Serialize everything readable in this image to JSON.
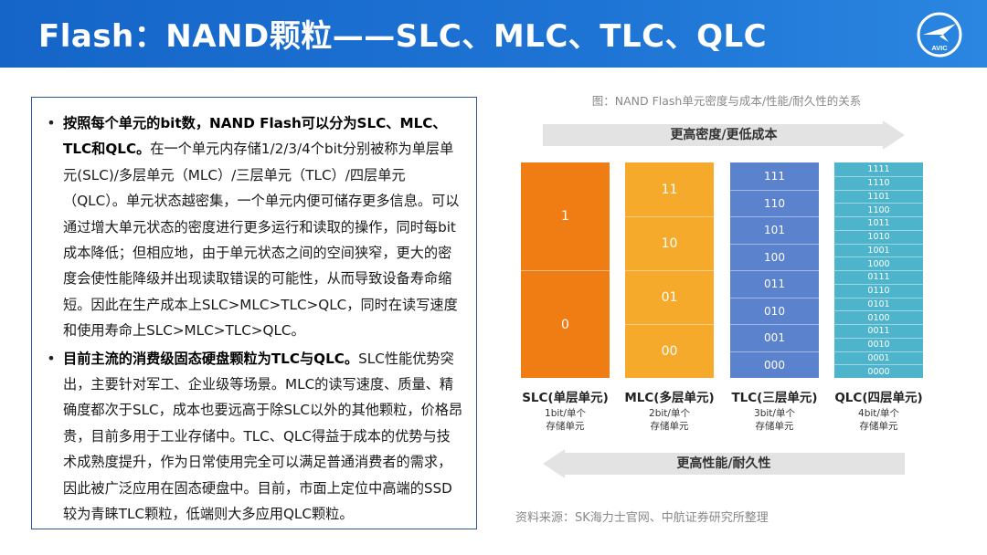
{
  "header": {
    "title": "Flash：NAND颗粒——SLC、MLC、TLC、QLC",
    "logo_text": "AVIC"
  },
  "left_panel": {
    "bullets": [
      {
        "bold": "按照每个单元的bit数，NAND Flash可以分为SLC、MLC、TLC和QLC。",
        "text": "在一个单元内存储1/2/3/4个bit分别被称为单层单元(SLC)/多层单元（MLC）/三层单元（TLC）/四层单元（QLC）。单元状态越密集，一个单元内便可储存更多信息。可以通过增大单元状态的密度进行更多运行和读取的操作，同时每bit成本降低；但相应地，由于单元状态之间的空间狭窄，更大的密度会使性能降级并出现读取错误的可能性，从而导致设备寿命缩短。因此在生产成本上SLC>MLC>TLC>QLC，同时在读写速度和使用寿命上SLC>MLC>TLC>QLC。"
      },
      {
        "bold": "目前主流的消费级固态硬盘颗粒为TLC与QLC。",
        "text": "SLC性能优势突出，主要针对军工、企业级等场景。MLC的读写速度、质量、精确度都次于SLC，成本也要远高于除SLC以外的其他颗粒，价格昂贵，目前多用于工业存储中。TLC、QLC得益于成本的优势与技术成熟度提升，作为日常使用完全可以满足普通消费者的需求，因此被广泛应用在固态硬盘中。目前，市面上定位中高端的SSD较为青睐TLC颗粒，低端则大多应用QLC颗粒。"
      }
    ]
  },
  "figure": {
    "caption": "图：NAND Flash单元密度与成本/性能/耐久性的关系",
    "top_arrow": "更高密度/更低成本",
    "bottom_arrow": "更高性能/耐久性",
    "columns": [
      {
        "name": "SLC(单层单元)",
        "sub1": "1bit/单个",
        "sub2": "存储单元",
        "color": "#f07c14",
        "cells": [
          "1",
          "0"
        ]
      },
      {
        "name": "MLC(多层单元)",
        "sub1": "2bit/单个",
        "sub2": "存储单元",
        "color": "#f5aa2c",
        "cells": [
          "11",
          "10",
          "01",
          "00"
        ]
      },
      {
        "name": "TLC(三层单元)",
        "sub1": "3bit/单个",
        "sub2": "存储单元",
        "color": "#5b82cd",
        "cells": [
          "111",
          "110",
          "101",
          "100",
          "011",
          "010",
          "001",
          "000"
        ]
      },
      {
        "name": "QLC(四层单元)",
        "sub1": "4bit/单个",
        "sub2": "存储单元",
        "color": "#4eb4cc",
        "cells": [
          "1111",
          "1110",
          "1101",
          "1100",
          "1011",
          "1010",
          "1001",
          "1000",
          "0111",
          "0110",
          "0101",
          "0100",
          "0011",
          "0010",
          "0001",
          "0000"
        ]
      }
    ],
    "source": "资料来源：SK海力士官网、中航证券研究所整理"
  }
}
